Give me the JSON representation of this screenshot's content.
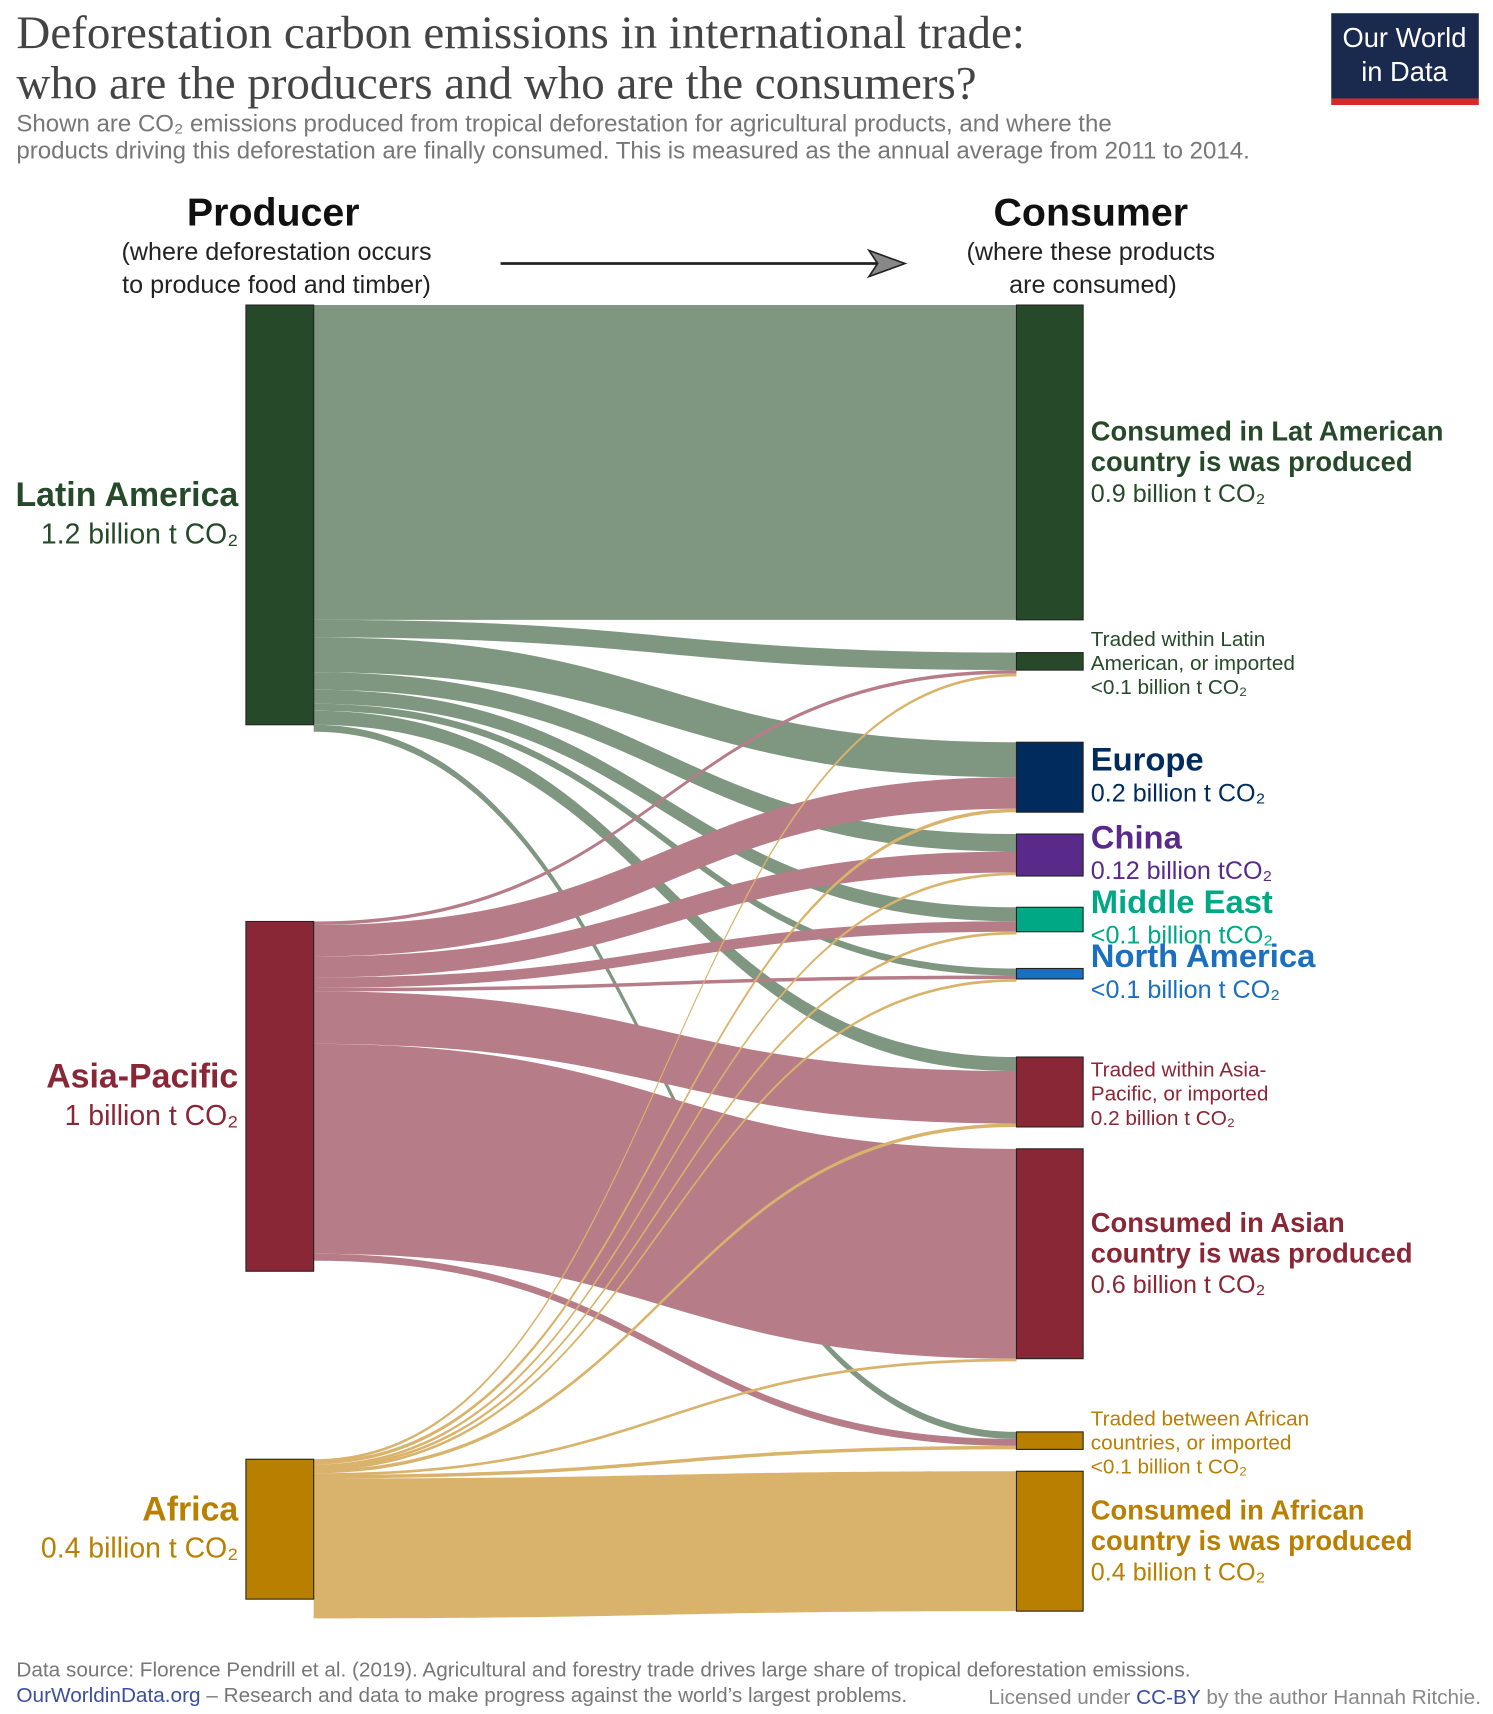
{
  "chart_data": {
    "type": "sankey",
    "title": [
      "Deforestation carbon emissions in international trade:",
      "who are the producers and who are the consumers?"
    ],
    "subtitle": [
      "Shown are CO₂ emissions produced from tropical deforestation for agricultural products, and where the",
      "products driving this deforestation are finally consumed.  This is measured as the annual average from 2011 to 2014."
    ],
    "logo": [
      "Our World",
      "in Data"
    ],
    "left_header": "Producer",
    "left_note": [
      "(where deforestation occurs",
      "to produce food and timber)"
    ],
    "right_header": "Consumer",
    "right_note": [
      "(where these products",
      "are consumed)"
    ],
    "sources": [
      {
        "name": [
          "Latin America"
        ],
        "value": 1.2,
        "value_label": "1.2 billion t CO₂",
        "color": "#264a29",
        "link_color": "#7f9780"
      },
      {
        "name": [
          "Asia-Pacific"
        ],
        "value": 1,
        "value_label": "1 billion t CO₂",
        "color": "#8a2737",
        "link_color": "#b67d88"
      },
      {
        "name": [
          "Africa"
        ],
        "value": 0.4,
        "value_label": "0.4 billion t CO₂",
        "color": "#b97f00",
        "link_color": "#d9b36b"
      }
    ],
    "targets": [
      {
        "name": [
          "Consumed in Lat American",
          "country is was produced"
        ],
        "value": 0.9,
        "value_label": "0.9 billion t CO₂",
        "color": "#264a29",
        "style": "large"
      },
      {
        "name": [
          "Traded within Latin",
          "American, or imported"
        ],
        "value": 0.05,
        "value_label": "<0.1 billion t CO₂",
        "color": "#264a29",
        "style": "small"
      },
      {
        "name": [
          "Europe"
        ],
        "value": 0.2,
        "value_label": "0.2 billion t CO₂",
        "color": "#002b5c",
        "style": "large"
      },
      {
        "name": [
          "China"
        ],
        "value": 0.12,
        "value_label": "0.12 billion tCO₂",
        "color": "#5a2a8a",
        "style": "large"
      },
      {
        "name": [
          "Middle East"
        ],
        "value": 0.07,
        "value_label": "<0.1 billion tCO₂",
        "color": "#00a885",
        "style": "large"
      },
      {
        "name": [
          "North  America"
        ],
        "value": 0.03,
        "value_label": "<0.1 billion t CO₂",
        "color": "#1a6fbf",
        "style": "large"
      },
      {
        "name": [
          "Traded within Asia-",
          "Pacific, or imported"
        ],
        "value": 0.2,
        "value_label": "0.2 billion t CO₂",
        "color": "#8a2737",
        "style": "small"
      },
      {
        "name": [
          "Consumed in Asian",
          "country is was produced"
        ],
        "value": 0.6,
        "value_label": "0.6 billion t CO₂",
        "color": "#8a2737",
        "style": "large"
      },
      {
        "name": [
          "Traded between African",
          "countries, or imported"
        ],
        "value": 0.05,
        "value_label": "<0.1 billion t CO₂",
        "color": "#b97f00",
        "style": "small"
      },
      {
        "name": [
          "Consumed in African",
          "country is was produced"
        ],
        "value": 0.4,
        "value_label": "0.4 billion t CO₂",
        "color": "#b97f00",
        "style": "large"
      }
    ],
    "links": [
      {
        "source": 0,
        "target": 0,
        "value": 0.9
      },
      {
        "source": 0,
        "target": 1,
        "value": 0.05
      },
      {
        "source": 0,
        "target": 2,
        "value": 0.1
      },
      {
        "source": 0,
        "target": 3,
        "value": 0.05
      },
      {
        "source": 0,
        "target": 4,
        "value": 0.04
      },
      {
        "source": 0,
        "target": 5,
        "value": 0.02
      },
      {
        "source": 0,
        "target": 6,
        "value": 0.04
      },
      {
        "source": 0,
        "target": 8,
        "value": 0.02
      },
      {
        "source": 1,
        "target": 1,
        "value": 0.01
      },
      {
        "source": 1,
        "target": 2,
        "value": 0.09
      },
      {
        "source": 1,
        "target": 3,
        "value": 0.06
      },
      {
        "source": 1,
        "target": 4,
        "value": 0.03
      },
      {
        "source": 1,
        "target": 5,
        "value": 0.01
      },
      {
        "source": 1,
        "target": 6,
        "value": 0.15
      },
      {
        "source": 1,
        "target": 7,
        "value": 0.6
      },
      {
        "source": 1,
        "target": 8,
        "value": 0.02
      },
      {
        "source": 2,
        "target": 1,
        "value": 0.005
      },
      {
        "source": 2,
        "target": 2,
        "value": 0.01
      },
      {
        "source": 2,
        "target": 3,
        "value": 0.005
      },
      {
        "source": 2,
        "target": 4,
        "value": 0.005
      },
      {
        "source": 2,
        "target": 5,
        "value": 0.005
      },
      {
        "source": 2,
        "target": 6,
        "value": 0.01
      },
      {
        "source": 2,
        "target": 7,
        "value": 0.005
      },
      {
        "source": 2,
        "target": 8,
        "value": 0.01
      },
      {
        "source": 2,
        "target": 9,
        "value": 0.4
      }
    ],
    "footer": {
      "source": "Data source: Florence Pendrill et al. (2019). Agricultural and forestry trade drives large share of tropical deforestation emissions.",
      "site": "OurWorldinData.org",
      "tagline": "– Research and data to make progress against the world’s largest problems.",
      "license_pre": "Licensed under ",
      "license": "CC-BY",
      "license_post": " by the author Hannah Ritchie."
    }
  }
}
